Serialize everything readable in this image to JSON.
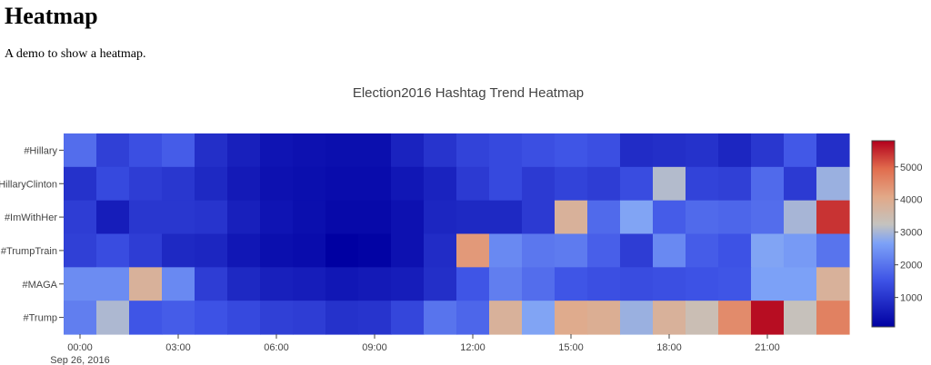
{
  "page": {
    "heading": "Heatmap",
    "subtitle": "A demo to show a heatmap."
  },
  "chart_data": {
    "type": "heatmap",
    "title": "Election2016 Hashtag Trend Heatmap",
    "xlabel": "",
    "ylabel": "",
    "y_categories": [
      "#Hillary",
      "#HillaryClinton",
      "#ImWithHer",
      "#TrumpTrain",
      "#MAGA",
      "#Trump"
    ],
    "x_hours": [
      0,
      1,
      2,
      3,
      4,
      5,
      6,
      7,
      8,
      9,
      10,
      11,
      12,
      13,
      14,
      15,
      16,
      17,
      18,
      19,
      20,
      21,
      22,
      23
    ],
    "x_ticks": [
      {
        "hour": 0,
        "label": "00:00",
        "sublabel": "Sep 26, 2016"
      },
      {
        "hour": 3,
        "label": "03:00",
        "sublabel": ""
      },
      {
        "hour": 6,
        "label": "06:00",
        "sublabel": ""
      },
      {
        "hour": 9,
        "label": "09:00",
        "sublabel": ""
      },
      {
        "hour": 12,
        "label": "12:00",
        "sublabel": ""
      },
      {
        "hour": 15,
        "label": "15:00",
        "sublabel": ""
      },
      {
        "hour": 18,
        "label": "18:00",
        "sublabel": ""
      },
      {
        "hour": 21,
        "label": "21:00",
        "sublabel": ""
      }
    ],
    "z": [
      [
        1900,
        1200,
        1450,
        1650,
        900,
        650,
        450,
        400,
        350,
        350,
        700,
        1000,
        1250,
        1350,
        1450,
        1550,
        1450,
        850,
        900,
        950,
        750,
        1050,
        1600,
        900
      ],
      [
        950,
        1350,
        1150,
        1050,
        800,
        550,
        400,
        350,
        300,
        300,
        500,
        700,
        1100,
        1350,
        1100,
        1250,
        1150,
        1400,
        3100,
        1250,
        1200,
        1850,
        1100,
        2900
      ],
      [
        1150,
        600,
        1050,
        1050,
        1000,
        650,
        450,
        350,
        250,
        250,
        400,
        750,
        800,
        800,
        1100,
        3800,
        1850,
        2700,
        1650,
        1850,
        1800,
        1900,
        3000,
        5400
      ],
      [
        1200,
        1400,
        1150,
        800,
        750,
        500,
        350,
        300,
        100,
        150,
        400,
        850,
        4300,
        2300,
        2050,
        2100,
        1700,
        1150,
        2300,
        1650,
        1500,
        2700,
        2550,
        2000
      ],
      [
        2350,
        2350,
        3800,
        2300,
        1150,
        800,
        650,
        600,
        500,
        550,
        600,
        900,
        1550,
        2150,
        1900,
        1550,
        1450,
        1400,
        1450,
        1500,
        1550,
        2650,
        2650,
        3800
      ],
      [
        2150,
        3050,
        1550,
        1650,
        1500,
        1350,
        1200,
        1150,
        950,
        1000,
        1300,
        2000,
        1800,
        3800,
        2700,
        4000,
        3900,
        2900,
        3800,
        3400,
        4500,
        5700,
        3300,
        4650
      ]
    ],
    "zmin": 100,
    "zmax": 5800,
    "colorscale": [
      [
        0.0,
        "#0000a2"
      ],
      [
        0.25,
        "#3e53e6"
      ],
      [
        0.45,
        "#7da2f7"
      ],
      [
        0.55,
        "#c4c3bf"
      ],
      [
        0.7,
        "#e2a887"
      ],
      [
        0.85,
        "#e16c4d"
      ],
      [
        1.0,
        "#b2001c"
      ]
    ],
    "colorbar_ticks": [
      1000,
      2000,
      3000,
      4000,
      5000
    ]
  }
}
